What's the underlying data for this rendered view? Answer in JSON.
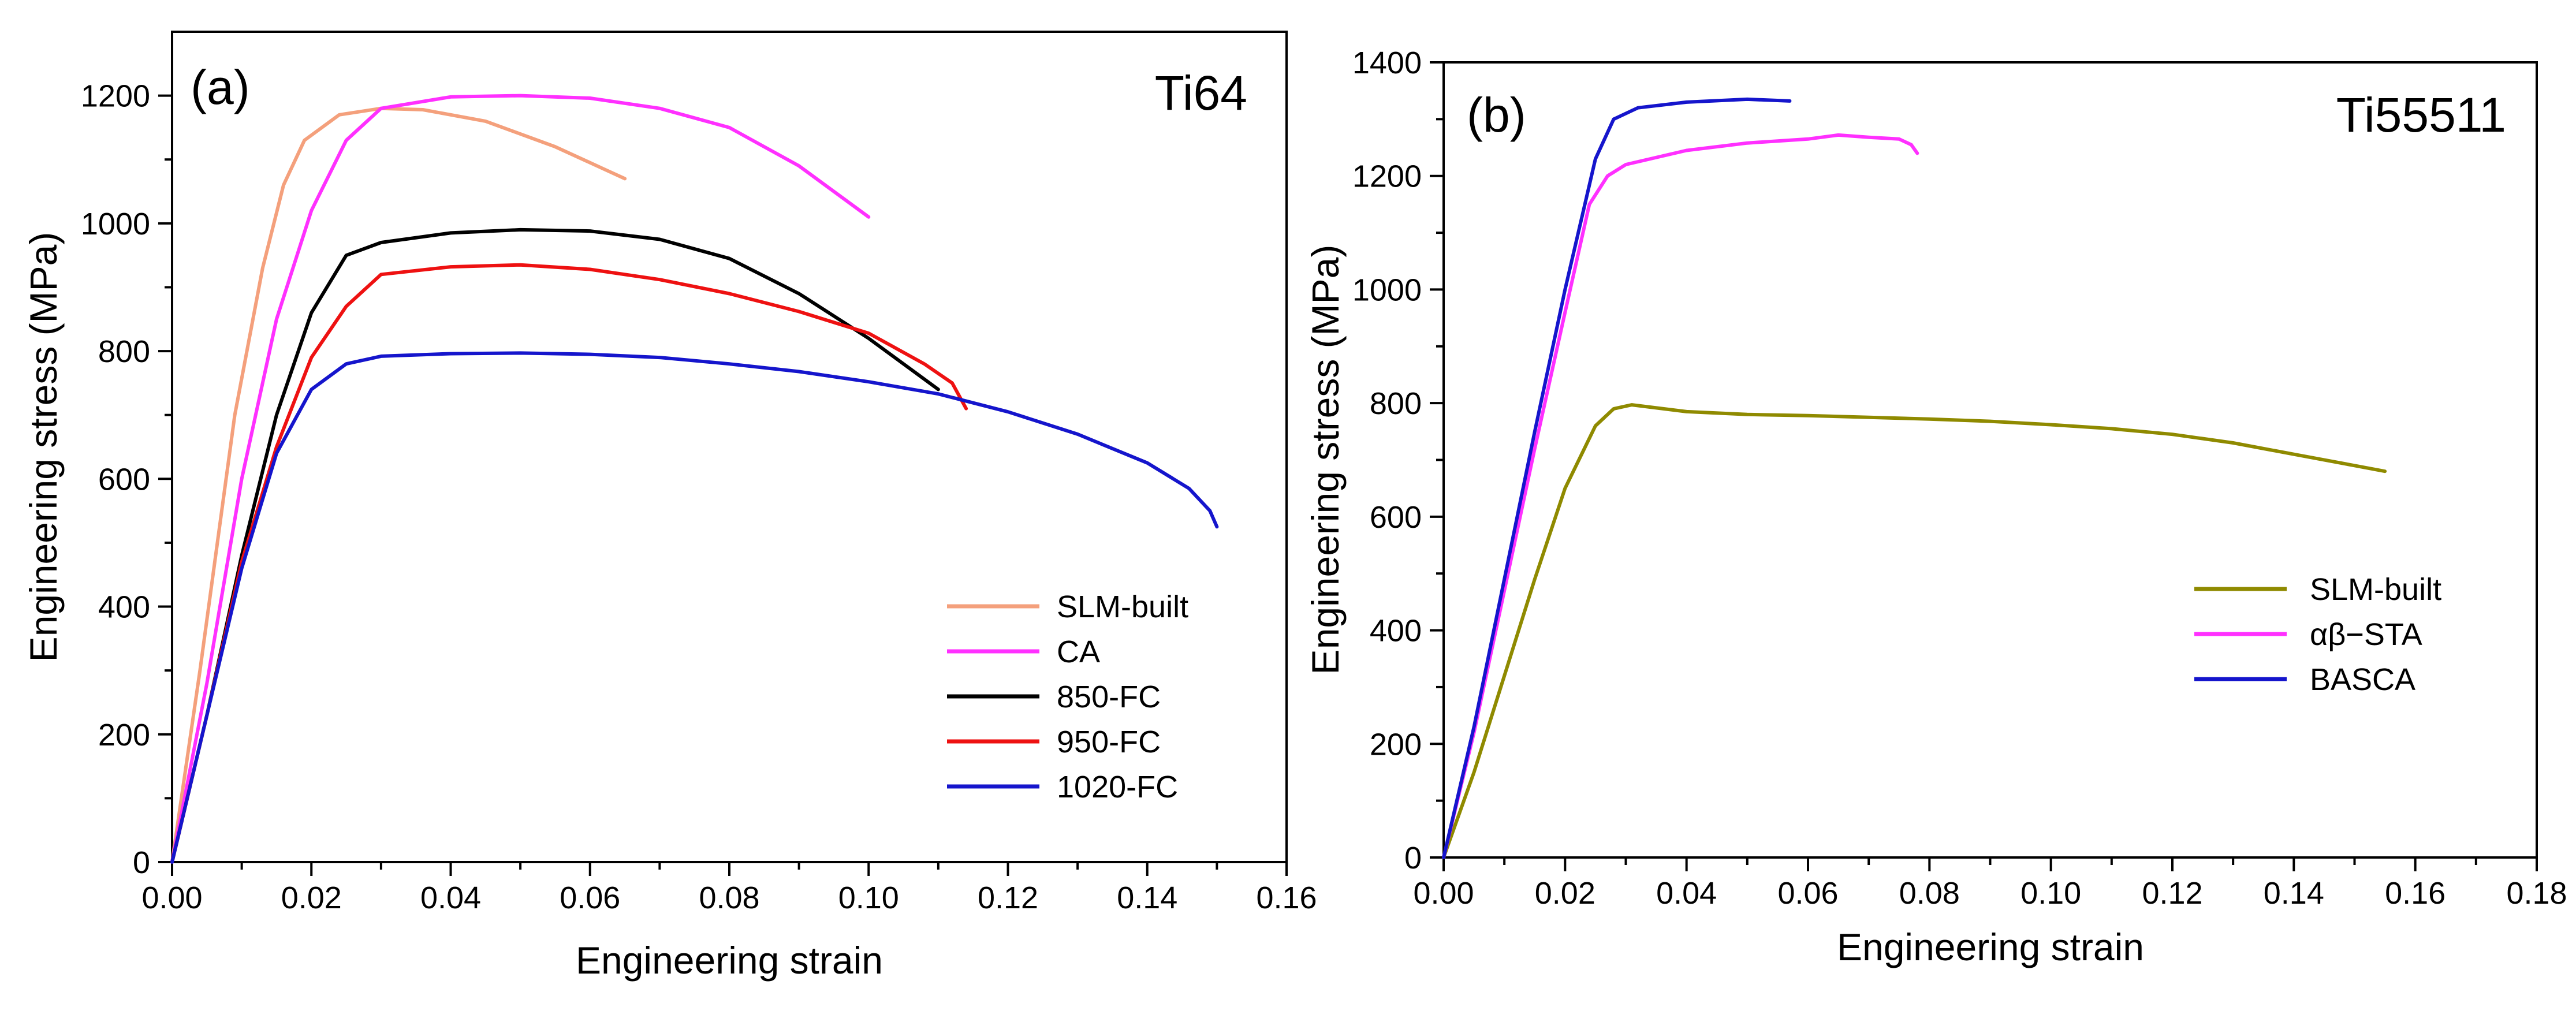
{
  "chart_data": [
    {
      "type": "line",
      "panel": "(a)",
      "alloy": "Ti64",
      "xlabel": "Engineering strain",
      "ylabel": "Engineering stress (MPa)",
      "xlim": [
        0,
        0.16
      ],
      "ylim": [
        0,
        1300
      ],
      "x_ticks": [
        0.0,
        0.02,
        0.04,
        0.06,
        0.08,
        0.1,
        0.12,
        0.14,
        0.16
      ],
      "x_tick_labels": [
        "0.00",
        "0.02",
        "0.04",
        "0.06",
        "0.08",
        "0.10",
        "0.12",
        "0.14",
        "0.16"
      ],
      "y_ticks": [
        0,
        200,
        400,
        600,
        800,
        1000,
        1200
      ],
      "y_tick_labels": [
        "0",
        "200",
        "400",
        "600",
        "800",
        "1000",
        "1200"
      ],
      "legend_position": "bottom-right",
      "series": [
        {
          "name": "SLM-built",
          "color": "#f4a07c",
          "points": [
            [
              0,
              0
            ],
            [
              0.004,
              300
            ],
            [
              0.009,
              700
            ],
            [
              0.013,
              930
            ],
            [
              0.016,
              1060
            ],
            [
              0.019,
              1130
            ],
            [
              0.024,
              1170
            ],
            [
              0.03,
              1180
            ],
            [
              0.036,
              1178
            ],
            [
              0.045,
              1160
            ],
            [
              0.055,
              1120
            ],
            [
              0.062,
              1085
            ],
            [
              0.065,
              1070
            ]
          ]
        },
        {
          "name": "CA",
          "color": "#ff30ff",
          "points": [
            [
              0,
              0
            ],
            [
              0.005,
              280
            ],
            [
              0.01,
              600
            ],
            [
              0.015,
              850
            ],
            [
              0.02,
              1020
            ],
            [
              0.025,
              1130
            ],
            [
              0.03,
              1180
            ],
            [
              0.04,
              1198
            ],
            [
              0.05,
              1200
            ],
            [
              0.06,
              1196
            ],
            [
              0.07,
              1180
            ],
            [
              0.08,
              1150
            ],
            [
              0.09,
              1090
            ],
            [
              0.1,
              1010
            ]
          ]
        },
        {
          "name": "850-FC",
          "color": "#000000",
          "points": [
            [
              0,
              0
            ],
            [
              0.005,
              230
            ],
            [
              0.01,
              480
            ],
            [
              0.015,
              700
            ],
            [
              0.02,
              860
            ],
            [
              0.025,
              950
            ],
            [
              0.03,
              970
            ],
            [
              0.04,
              985
            ],
            [
              0.05,
              990
            ],
            [
              0.06,
              988
            ],
            [
              0.07,
              975
            ],
            [
              0.08,
              945
            ],
            [
              0.09,
              890
            ],
            [
              0.1,
              820
            ],
            [
              0.11,
              740
            ]
          ]
        },
        {
          "name": "950-FC",
          "color": "#ee1111",
          "points": [
            [
              0,
              0
            ],
            [
              0.005,
              230
            ],
            [
              0.01,
              470
            ],
            [
              0.015,
              650
            ],
            [
              0.02,
              790
            ],
            [
              0.025,
              870
            ],
            [
              0.03,
              920
            ],
            [
              0.04,
              932
            ],
            [
              0.05,
              935
            ],
            [
              0.06,
              928
            ],
            [
              0.07,
              912
            ],
            [
              0.08,
              890
            ],
            [
              0.09,
              862
            ],
            [
              0.1,
              828
            ],
            [
              0.108,
              780
            ],
            [
              0.112,
              750
            ],
            [
              0.114,
              710
            ]
          ]
        },
        {
          "name": "1020-FC",
          "color": "#1515cc",
          "points": [
            [
              0,
              0
            ],
            [
              0.005,
              230
            ],
            [
              0.01,
              460
            ],
            [
              0.015,
              640
            ],
            [
              0.02,
              740
            ],
            [
              0.025,
              780
            ],
            [
              0.03,
              792
            ],
            [
              0.04,
              796
            ],
            [
              0.05,
              797
            ],
            [
              0.06,
              795
            ],
            [
              0.07,
              790
            ],
            [
              0.08,
              780
            ],
            [
              0.09,
              768
            ],
            [
              0.1,
              752
            ],
            [
              0.11,
              733
            ],
            [
              0.12,
              705
            ],
            [
              0.13,
              670
            ],
            [
              0.14,
              625
            ],
            [
              0.146,
              585
            ],
            [
              0.149,
              550
            ],
            [
              0.15,
              525
            ]
          ]
        }
      ]
    },
    {
      "type": "line",
      "panel": "(b)",
      "alloy": "Ti55511",
      "xlabel": "Engineering strain",
      "ylabel": "Engineering stress (MPa)",
      "xlim": [
        0,
        0.18
      ],
      "ylim": [
        0,
        1400
      ],
      "x_ticks": [
        0.0,
        0.02,
        0.04,
        0.06,
        0.08,
        0.1,
        0.12,
        0.14,
        0.16,
        0.18
      ],
      "x_tick_labels": [
        "0.00",
        "0.02",
        "0.04",
        "0.06",
        "0.08",
        "0.10",
        "0.12",
        "0.14",
        "0.16",
        "0.18"
      ],
      "y_ticks": [
        0,
        200,
        400,
        600,
        800,
        1000,
        1200,
        1400
      ],
      "y_tick_labels": [
        "0",
        "200",
        "400",
        "600",
        "800",
        "1000",
        "1200",
        "1400"
      ],
      "legend_position": "bottom-right",
      "series": [
        {
          "name": "SLM-built",
          "color": "#8f8a00",
          "points": [
            [
              0,
              0
            ],
            [
              0.005,
              150
            ],
            [
              0.01,
              320
            ],
            [
              0.015,
              490
            ],
            [
              0.02,
              650
            ],
            [
              0.025,
              760
            ],
            [
              0.028,
              790
            ],
            [
              0.031,
              797
            ],
            [
              0.04,
              785
            ],
            [
              0.05,
              780
            ],
            [
              0.06,
              778
            ],
            [
              0.07,
              775
            ],
            [
              0.08,
              772
            ],
            [
              0.09,
              768
            ],
            [
              0.1,
              762
            ],
            [
              0.11,
              755
            ],
            [
              0.12,
              745
            ],
            [
              0.13,
              730
            ],
            [
              0.14,
              710
            ],
            [
              0.15,
              690
            ],
            [
              0.155,
              680
            ]
          ]
        },
        {
          "name": "αβ−STA",
          "color": "#ff30ff",
          "points": [
            [
              0,
              0
            ],
            [
              0.005,
              220
            ],
            [
              0.01,
              470
            ],
            [
              0.015,
              720
            ],
            [
              0.02,
              960
            ],
            [
              0.024,
              1150
            ],
            [
              0.027,
              1200
            ],
            [
              0.03,
              1220
            ],
            [
              0.04,
              1245
            ],
            [
              0.05,
              1258
            ],
            [
              0.06,
              1265
            ],
            [
              0.065,
              1272
            ],
            [
              0.07,
              1268
            ],
            [
              0.075,
              1265
            ],
            [
              0.077,
              1255
            ],
            [
              0.078,
              1240
            ]
          ]
        },
        {
          "name": "BASCA",
          "color": "#1515cc",
          "points": [
            [
              0,
              0
            ],
            [
              0.005,
              230
            ],
            [
              0.01,
              490
            ],
            [
              0.015,
              750
            ],
            [
              0.02,
              1000
            ],
            [
              0.025,
              1230
            ],
            [
              0.028,
              1300
            ],
            [
              0.032,
              1320
            ],
            [
              0.04,
              1330
            ],
            [
              0.05,
              1335
            ],
            [
              0.057,
              1332
            ]
          ]
        }
      ]
    }
  ]
}
